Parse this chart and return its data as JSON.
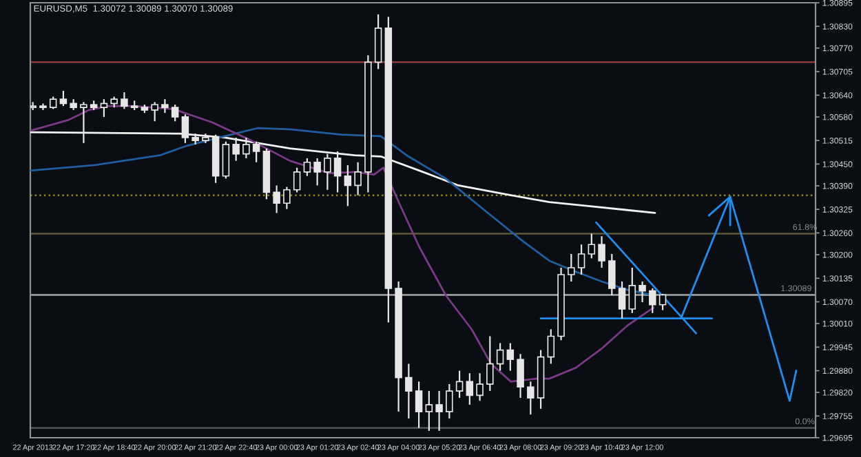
{
  "chart_data": {
    "type": "candlestick",
    "title": "EURUSD,M5  1.30072 1.30089 1.30070 1.30089",
    "color": "#e6e6e6",
    "x": [
      "2013-04-22T16:00",
      "2013-04-22T16:20",
      "2013-04-22T16:40",
      "2013-04-22T17:00",
      "2013-04-22T17:20",
      "2013-04-22T17:40",
      "2013-04-22T18:00",
      "2013-04-22T18:20",
      "2013-04-22T18:40",
      "2013-04-22T19:00",
      "2013-04-22T19:20",
      "2013-04-22T19:40",
      "2013-04-22T20:00",
      "2013-04-22T20:20",
      "2013-04-22T20:40",
      "2013-04-22T21:00",
      "2013-04-22T21:20",
      "2013-04-22T21:40",
      "2013-04-22T22:00",
      "2013-04-22T22:20",
      "2013-04-22T22:40",
      "2013-04-22T23:00",
      "2013-04-22T23:20",
      "2013-04-22T23:40",
      "2013-04-23T00:00",
      "2013-04-23T00:20",
      "2013-04-23T00:40",
      "2013-04-23T01:00",
      "2013-04-23T01:20",
      "2013-04-23T01:40",
      "2013-04-23T02:00",
      "2013-04-23T02:20",
      "2013-04-23T02:40",
      "2013-04-23T03:00",
      "2013-04-23T03:20",
      "2013-04-23T03:40",
      "2013-04-23T04:00",
      "2013-04-23T04:20",
      "2013-04-23T04:40",
      "2013-04-23T05:00",
      "2013-04-23T05:20",
      "2013-04-23T05:40",
      "2013-04-23T06:00",
      "2013-04-23T06:20",
      "2013-04-23T06:40",
      "2013-04-23T07:00",
      "2013-04-23T07:20",
      "2013-04-23T07:40",
      "2013-04-23T08:00",
      "2013-04-23T08:20",
      "2013-04-23T08:40",
      "2013-04-23T09:00",
      "2013-04-23T09:20",
      "2013-04-23T09:40",
      "2013-04-23T10:00",
      "2013-04-23T10:20",
      "2013-04-23T10:40",
      "2013-04-23T11:00",
      "2013-04-23T11:20",
      "2013-04-23T11:40",
      "2013-04-23T12:00",
      "2013-04-23T12:20",
      "2013-04-23T12:40"
    ],
    "ohlc": [
      [
        1.30606,
        1.30621,
        1.30599,
        1.3061
      ],
      [
        1.3061,
        1.30617,
        1.30599,
        1.30606
      ],
      [
        1.30606,
        1.30636,
        1.30602,
        1.30629
      ],
      [
        1.30629,
        1.30652,
        1.3061,
        1.30617
      ],
      [
        1.30617,
        1.30629,
        1.30599,
        1.30606
      ],
      [
        1.30606,
        1.30621,
        1.30508,
        1.30614
      ],
      [
        1.30614,
        1.30625,
        1.30599,
        1.30606
      ],
      [
        1.30606,
        1.30629,
        1.3058,
        1.30617
      ],
      [
        1.30617,
        1.30636,
        1.30606,
        1.30629
      ],
      [
        1.30629,
        1.30648,
        1.30602,
        1.3061
      ],
      [
        1.3061,
        1.30625,
        1.30599,
        1.30606
      ],
      [
        1.30606,
        1.30614,
        1.30591,
        1.30599
      ],
      [
        1.30599,
        1.30621,
        1.30568,
        1.30614
      ],
      [
        1.30614,
        1.30629,
        1.30591,
        1.30606
      ],
      [
        1.30606,
        1.30614,
        1.30568,
        1.3058
      ],
      [
        1.3058,
        1.30587,
        1.30508,
        1.30523
      ],
      [
        1.30523,
        1.30534,
        1.30504,
        1.30515
      ],
      [
        1.30515,
        1.30534,
        1.30508,
        1.30523
      ],
      [
        1.30523,
        1.30531,
        1.30398,
        1.30417
      ],
      [
        1.30417,
        1.30512,
        1.3041,
        1.30504
      ],
      [
        1.30504,
        1.30523,
        1.30459,
        1.30478
      ],
      [
        1.30478,
        1.30523,
        1.30466,
        1.30504
      ],
      [
        1.30504,
        1.30512,
        1.30455,
        1.30485
      ],
      [
        1.30485,
        1.30493,
        1.30353,
        1.30372
      ],
      [
        1.30372,
        1.30391,
        1.30315,
        1.30342
      ],
      [
        1.30342,
        1.30387,
        1.30326,
        1.30379
      ],
      [
        1.30379,
        1.3044,
        1.30372,
        1.30428
      ],
      [
        1.30428,
        1.30466,
        1.30417,
        1.30455
      ],
      [
        1.30455,
        1.30466,
        1.30391,
        1.30428
      ],
      [
        1.30428,
        1.30478,
        1.30379,
        1.30466
      ],
      [
        1.30466,
        1.30485,
        1.30372,
        1.30417
      ],
      [
        1.30417,
        1.30447,
        1.30334,
        1.30391
      ],
      [
        1.30391,
        1.30455,
        1.30364,
        1.30428
      ],
      [
        1.30428,
        1.3075,
        1.30372,
        1.30731
      ],
      [
        1.30731,
        1.30863,
        1.30712,
        1.30825
      ],
      [
        1.30825,
        1.30856,
        1.30013,
        1.30107
      ],
      [
        1.30107,
        1.30126,
        1.29767,
        1.29861
      ],
      [
        1.29861,
        1.29899,
        1.29748,
        1.29824
      ],
      [
        1.29824,
        1.2985,
        1.29722,
        1.29767
      ],
      [
        1.29767,
        1.29824,
        1.29714,
        1.29786
      ],
      [
        1.29786,
        1.29824,
        1.29714,
        1.29767
      ],
      [
        1.29767,
        1.29843,
        1.29748,
        1.29824
      ],
      [
        1.29824,
        1.2988,
        1.29805,
        1.2985
      ],
      [
        1.2985,
        1.29873,
        1.29786,
        1.29812
      ],
      [
        1.29812,
        1.29873,
        1.29797,
        1.29843
      ],
      [
        1.29843,
        1.29975,
        1.29824,
        1.29899
      ],
      [
        1.29899,
        1.29956,
        1.2988,
        1.29937
      ],
      [
        1.29937,
        1.29956,
        1.2988,
        1.29911
      ],
      [
        1.29911,
        1.29926,
        1.29805,
        1.29835
      ],
      [
        1.29835,
        1.2985,
        1.29759,
        1.29805
      ],
      [
        1.29805,
        1.29937,
        1.29775,
        1.29918
      ],
      [
        1.29918,
        1.29994,
        1.29899,
        1.29975
      ],
      [
        1.29975,
        1.30164,
        1.29964,
        1.30145
      ],
      [
        1.30145,
        1.30202,
        1.30126,
        1.30164
      ],
      [
        1.30164,
        1.30228,
        1.30145,
        1.30202
      ],
      [
        1.30202,
        1.30258,
        1.3019,
        1.30228
      ],
      [
        1.30228,
        1.30251,
        1.30164,
        1.30183
      ],
      [
        1.30183,
        1.30202,
        1.30088,
        1.30107
      ],
      [
        1.30107,
        1.30126,
        1.30024,
        1.3005
      ],
      [
        1.3005,
        1.30164,
        1.30039,
        1.30115
      ],
      [
        1.30115,
        1.30126,
        1.30069,
        1.301
      ],
      [
        1.301,
        1.30107,
        1.30039,
        1.30062
      ],
      [
        1.30062,
        1.30092,
        1.30047,
        1.30089
      ]
    ],
    "series": [
      {
        "type": "line",
        "color": "#f2f2f2",
        "x": [
          "2013-04-22T15:55",
          "2013-04-22T20:49",
          "2013-04-22T22:18",
          "2013-04-23T00:26",
          "2013-04-23T02:34",
          "2013-04-23T03:25",
          "2013-04-23T04:41",
          "2013-04-23T05:58",
          "2013-04-23T07:41",
          "2013-04-23T08:57",
          "2013-04-23T10:14",
          "2013-04-23T11:31",
          "2013-04-23T12:25"
        ],
        "values": [
          1.30538,
          1.30534,
          1.30523,
          1.30493,
          1.30474,
          1.30471,
          1.30432,
          1.30391,
          1.30364,
          1.30345,
          1.30334,
          1.30323,
          1.30315
        ]
      },
      {
        "type": "line",
        "color": "#1f5f9f",
        "x": [
          "2013-04-22T15:55",
          "2013-04-22T18:02",
          "2013-04-22T20:10",
          "2013-04-22T21:02",
          "2013-04-22T22:18",
          "2013-04-22T23:22",
          "2013-04-23T00:26",
          "2013-04-23T02:08",
          "2013-04-23T03:25",
          "2013-04-23T04:16",
          "2013-04-23T05:33",
          "2013-04-23T06:49",
          "2013-04-23T08:06",
          "2013-04-23T08:57",
          "2013-04-23T09:49",
          "2013-04-23T10:40",
          "2013-04-23T11:31",
          "2013-04-23T12:22"
        ],
        "values": [
          1.30432,
          1.30447,
          1.30474,
          1.305,
          1.30527,
          1.30549,
          1.30546,
          1.30531,
          1.30527,
          1.30474,
          1.3041,
          1.30323,
          1.30236,
          1.30183,
          1.30153,
          1.30126,
          1.30103,
          1.30088
        ]
      },
      {
        "type": "line",
        "color": "#7a3a86",
        "x": [
          "2013-04-22T15:55",
          "2013-04-22T17:11",
          "2013-04-22T17:50",
          "2013-04-22T18:28",
          "2013-04-22T19:19",
          "2013-04-22T20:36",
          "2013-04-22T21:53",
          "2013-04-22T23:10",
          "2013-04-23T00:26",
          "2013-04-23T01:43",
          "2013-04-23T02:34",
          "2013-04-23T03:12",
          "2013-04-23T03:30",
          "2013-04-23T04:04",
          "2013-04-23T04:41",
          "2013-04-23T05:33",
          "2013-04-23T06:24",
          "2013-04-23T07:02",
          "2013-04-23T07:41",
          "2013-04-23T08:32",
          "2013-04-23T08:57",
          "2013-04-23T09:49",
          "2013-04-23T10:40",
          "2013-04-23T11:31",
          "2013-04-23T12:22"
        ],
        "values": [
          1.30542,
          1.30572,
          1.30599,
          1.3061,
          1.3061,
          1.30602,
          1.30565,
          1.30515,
          1.30459,
          1.30425,
          1.30428,
          1.30421,
          1.3044,
          1.30334,
          1.30221,
          1.30088,
          1.29994,
          1.29899,
          1.2985,
          1.29858,
          1.29858,
          1.29888,
          1.29941,
          1.30005,
          1.30054
        ]
      },
      {
        "type": "line",
        "color": "#1e8ff0",
        "x": [
          "2013-04-23T10:29",
          "2013-04-23T13:46"
        ],
        "values": [
          1.30289,
          1.29983
        ]
      },
      {
        "type": "line",
        "color": "#1e8ff0",
        "x": [
          "2013-04-23T08:40",
          "2013-04-23T14:17"
        ],
        "values": [
          1.30024,
          1.30024
        ]
      },
      {
        "type": "line",
        "color": "#1e8ff0",
        "x": [
          "2013-04-23T13:16",
          "2013-04-23T14:53",
          "2013-04-23T16:50",
          "2013-04-23T17:03"
        ],
        "values": [
          1.30024,
          1.3036,
          1.29797,
          1.2988
        ]
      },
      {
        "type": "line",
        "color": "#1e8ff0",
        "x": [
          "2013-04-23T14:11",
          "2013-04-23T14:53",
          "2013-04-23T14:53"
        ],
        "values": [
          1.30308,
          1.3036,
          1.30281
        ]
      }
    ],
    "ref_lines": [
      {
        "axis": "y",
        "value": 1.30731,
        "color": "#8a3c3c"
      },
      {
        "axis": "y",
        "value": 1.30364,
        "color": "#8c8c10",
        "line_style": "dotted"
      },
      {
        "axis": "y",
        "value": 1.30258,
        "color": "#5c5a3a"
      },
      {
        "axis": "y",
        "value": 1.30089,
        "color": "#a8a8a8",
        "label": "1.30089"
      },
      {
        "axis": "y",
        "value": 1.29722,
        "color": "#555555"
      }
    ],
    "annotations": [
      {
        "text": "61.8%",
        "x": "2013-04-23T17:20",
        "y": 1.30258
      },
      {
        "text": "0.0%",
        "x": "2013-04-23T17:20",
        "y": 1.29722
      }
    ],
    "xlim": [
      "2013-04-22T15:55",
      "2013-04-23T17:41"
    ],
    "ylim": [
      1.29695,
      1.30895
    ],
    "xticks": [
      {
        "value": "2013-04-22T16:00",
        "label": "22 Apr 2013"
      },
      {
        "value": "2013-04-22T17:20",
        "label": "22 Apr 17:20"
      },
      {
        "value": "2013-04-22T18:40",
        "label": "22 Apr 18:40"
      },
      {
        "value": "2013-04-22T20:00",
        "label": "22 Apr 20:00"
      },
      {
        "value": "2013-04-22T21:20",
        "label": "22 Apr 21:20"
      },
      {
        "value": "2013-04-22T22:40",
        "label": "22 Apr 22:40"
      },
      {
        "value": "2013-04-23T00:00",
        "label": "23 Apr 00:00"
      },
      {
        "value": "2013-04-23T01:20",
        "label": "23 Apr 01:20"
      },
      {
        "value": "2013-04-23T02:40",
        "label": "23 Apr 02:40"
      },
      {
        "value": "2013-04-23T04:00",
        "label": "23 Apr 04:00"
      },
      {
        "value": "2013-04-23T05:20",
        "label": "23 Apr 05:20"
      },
      {
        "value": "2013-04-23T06:40",
        "label": "23 Apr 06:40"
      },
      {
        "value": "2013-04-23T08:00",
        "label": "23 Apr 08:00"
      },
      {
        "value": "2013-04-23T09:20",
        "label": "23 Apr 09:20"
      },
      {
        "value": "2013-04-23T10:40",
        "label": "23 Apr 10:40"
      },
      {
        "value": "2013-04-23T12:00",
        "label": "23 Apr 12:00"
      }
    ],
    "yticks": [
      {
        "value": 1.30895,
        "label": "1.30895"
      },
      {
        "value": 1.3083,
        "label": "1.30830"
      },
      {
        "value": 1.3077,
        "label": "1.30770"
      },
      {
        "value": 1.30705,
        "label": "1.30705"
      },
      {
        "value": 1.3064,
        "label": "1.30640"
      },
      {
        "value": 1.3058,
        "label": "1.30580"
      },
      {
        "value": 1.30515,
        "label": "1.30515"
      },
      {
        "value": 1.3045,
        "label": "1.30450"
      },
      {
        "value": 1.3039,
        "label": "1.30390"
      },
      {
        "value": 1.30325,
        "label": "1.30325"
      },
      {
        "value": 1.3026,
        "label": "1.30260"
      },
      {
        "value": 1.302,
        "label": "1.30200"
      },
      {
        "value": 1.30135,
        "label": "1.30135"
      },
      {
        "value": 1.3007,
        "label": "1.30070"
      },
      {
        "value": 1.3001,
        "label": "1.30010"
      },
      {
        "value": 1.29945,
        "label": "1.29945"
      },
      {
        "value": 1.2988,
        "label": "1.29880"
      },
      {
        "value": 1.2982,
        "label": "1.29820"
      },
      {
        "value": 1.29755,
        "label": "1.29755"
      },
      {
        "value": 1.29695,
        "label": "1.29695"
      }
    ]
  }
}
